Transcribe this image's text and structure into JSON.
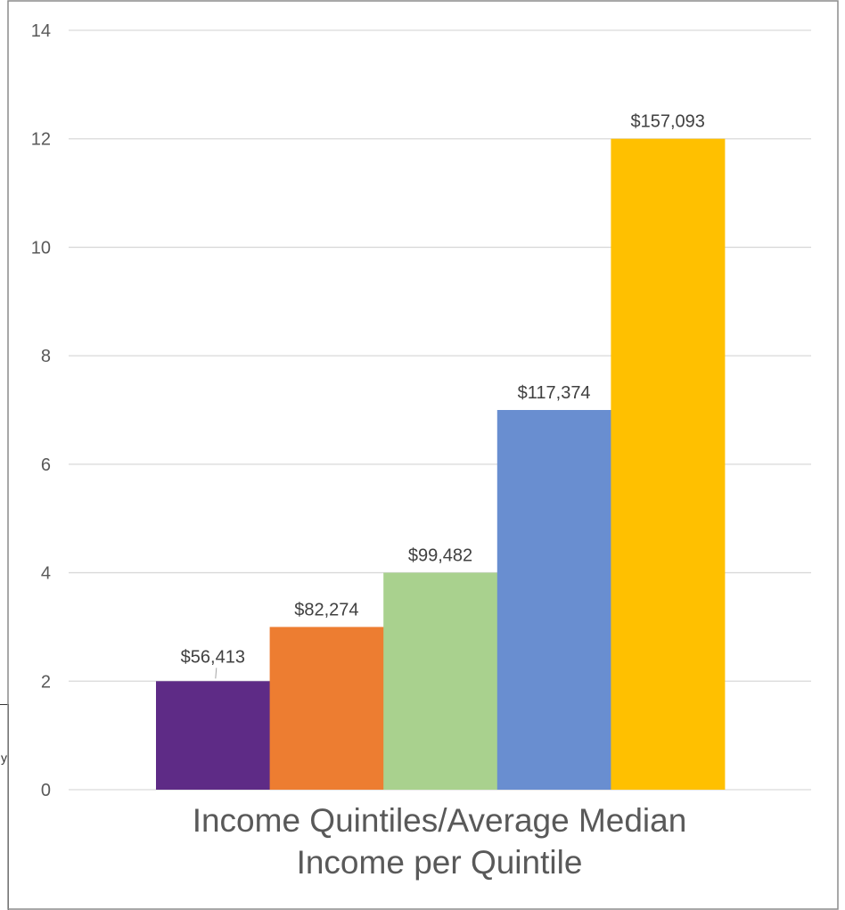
{
  "background_fragment": {
    "glyph": "y"
  },
  "chart_data": {
    "type": "bar",
    "title": "",
    "xlabel": "Income Quintiles/Average Median Income per Quintile",
    "ylabel": "",
    "ylim": [
      0,
      14
    ],
    "yticks": [
      0,
      2,
      4,
      6,
      8,
      10,
      12,
      14
    ],
    "grid": true,
    "legend": "none",
    "series": [
      {
        "values": [
          2,
          3,
          4,
          7,
          12
        ],
        "data_labels": [
          "$56,413",
          "$82,274",
          "$99,482",
          "$117,374",
          "$157,093"
        ],
        "colors": [
          "#5e2b86",
          "#ed7d31",
          "#a9d18e",
          "#698ed0",
          "#ffc000"
        ]
      }
    ],
    "colors": {
      "grid": "#d9d9d9",
      "axis_text": "#595959",
      "label_text": "#404040",
      "frame": "#8c8c8c"
    }
  }
}
